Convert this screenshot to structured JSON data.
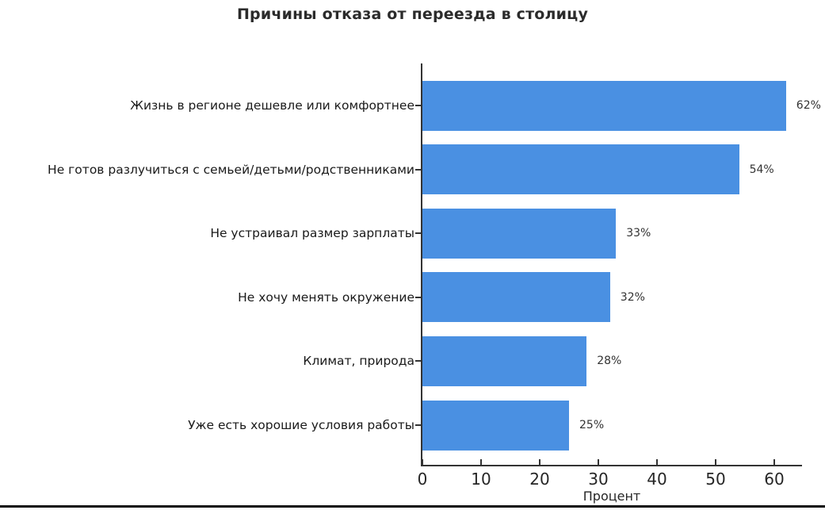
{
  "chart_data": {
    "type": "bar",
    "orientation": "horizontal",
    "title": "Причины отказа от переезда в столицу",
    "xlabel": "Процент",
    "ylabel": "",
    "categories": [
      "Жизнь в регионе дешевле или комфортнее",
      "Не готов разлучиться с семьей/детьми/родственниками",
      "Не устраивал размер зарплаты",
      "Не хочу менять окружение",
      "Климат, природа",
      "Уже есть хорошие условия работы"
    ],
    "values": [
      62,
      54,
      33,
      32,
      28,
      25
    ],
    "value_labels": [
      "62%",
      "54%",
      "33%",
      "32%",
      "28%",
      "25%"
    ],
    "xticks": [
      0,
      10,
      20,
      30,
      40,
      50,
      60
    ],
    "xlim": [
      0,
      65
    ],
    "grid": false,
    "legend": null,
    "bar_color": "#4a90e2",
    "axis_color": "#333333",
    "text_color": "#262626"
  }
}
